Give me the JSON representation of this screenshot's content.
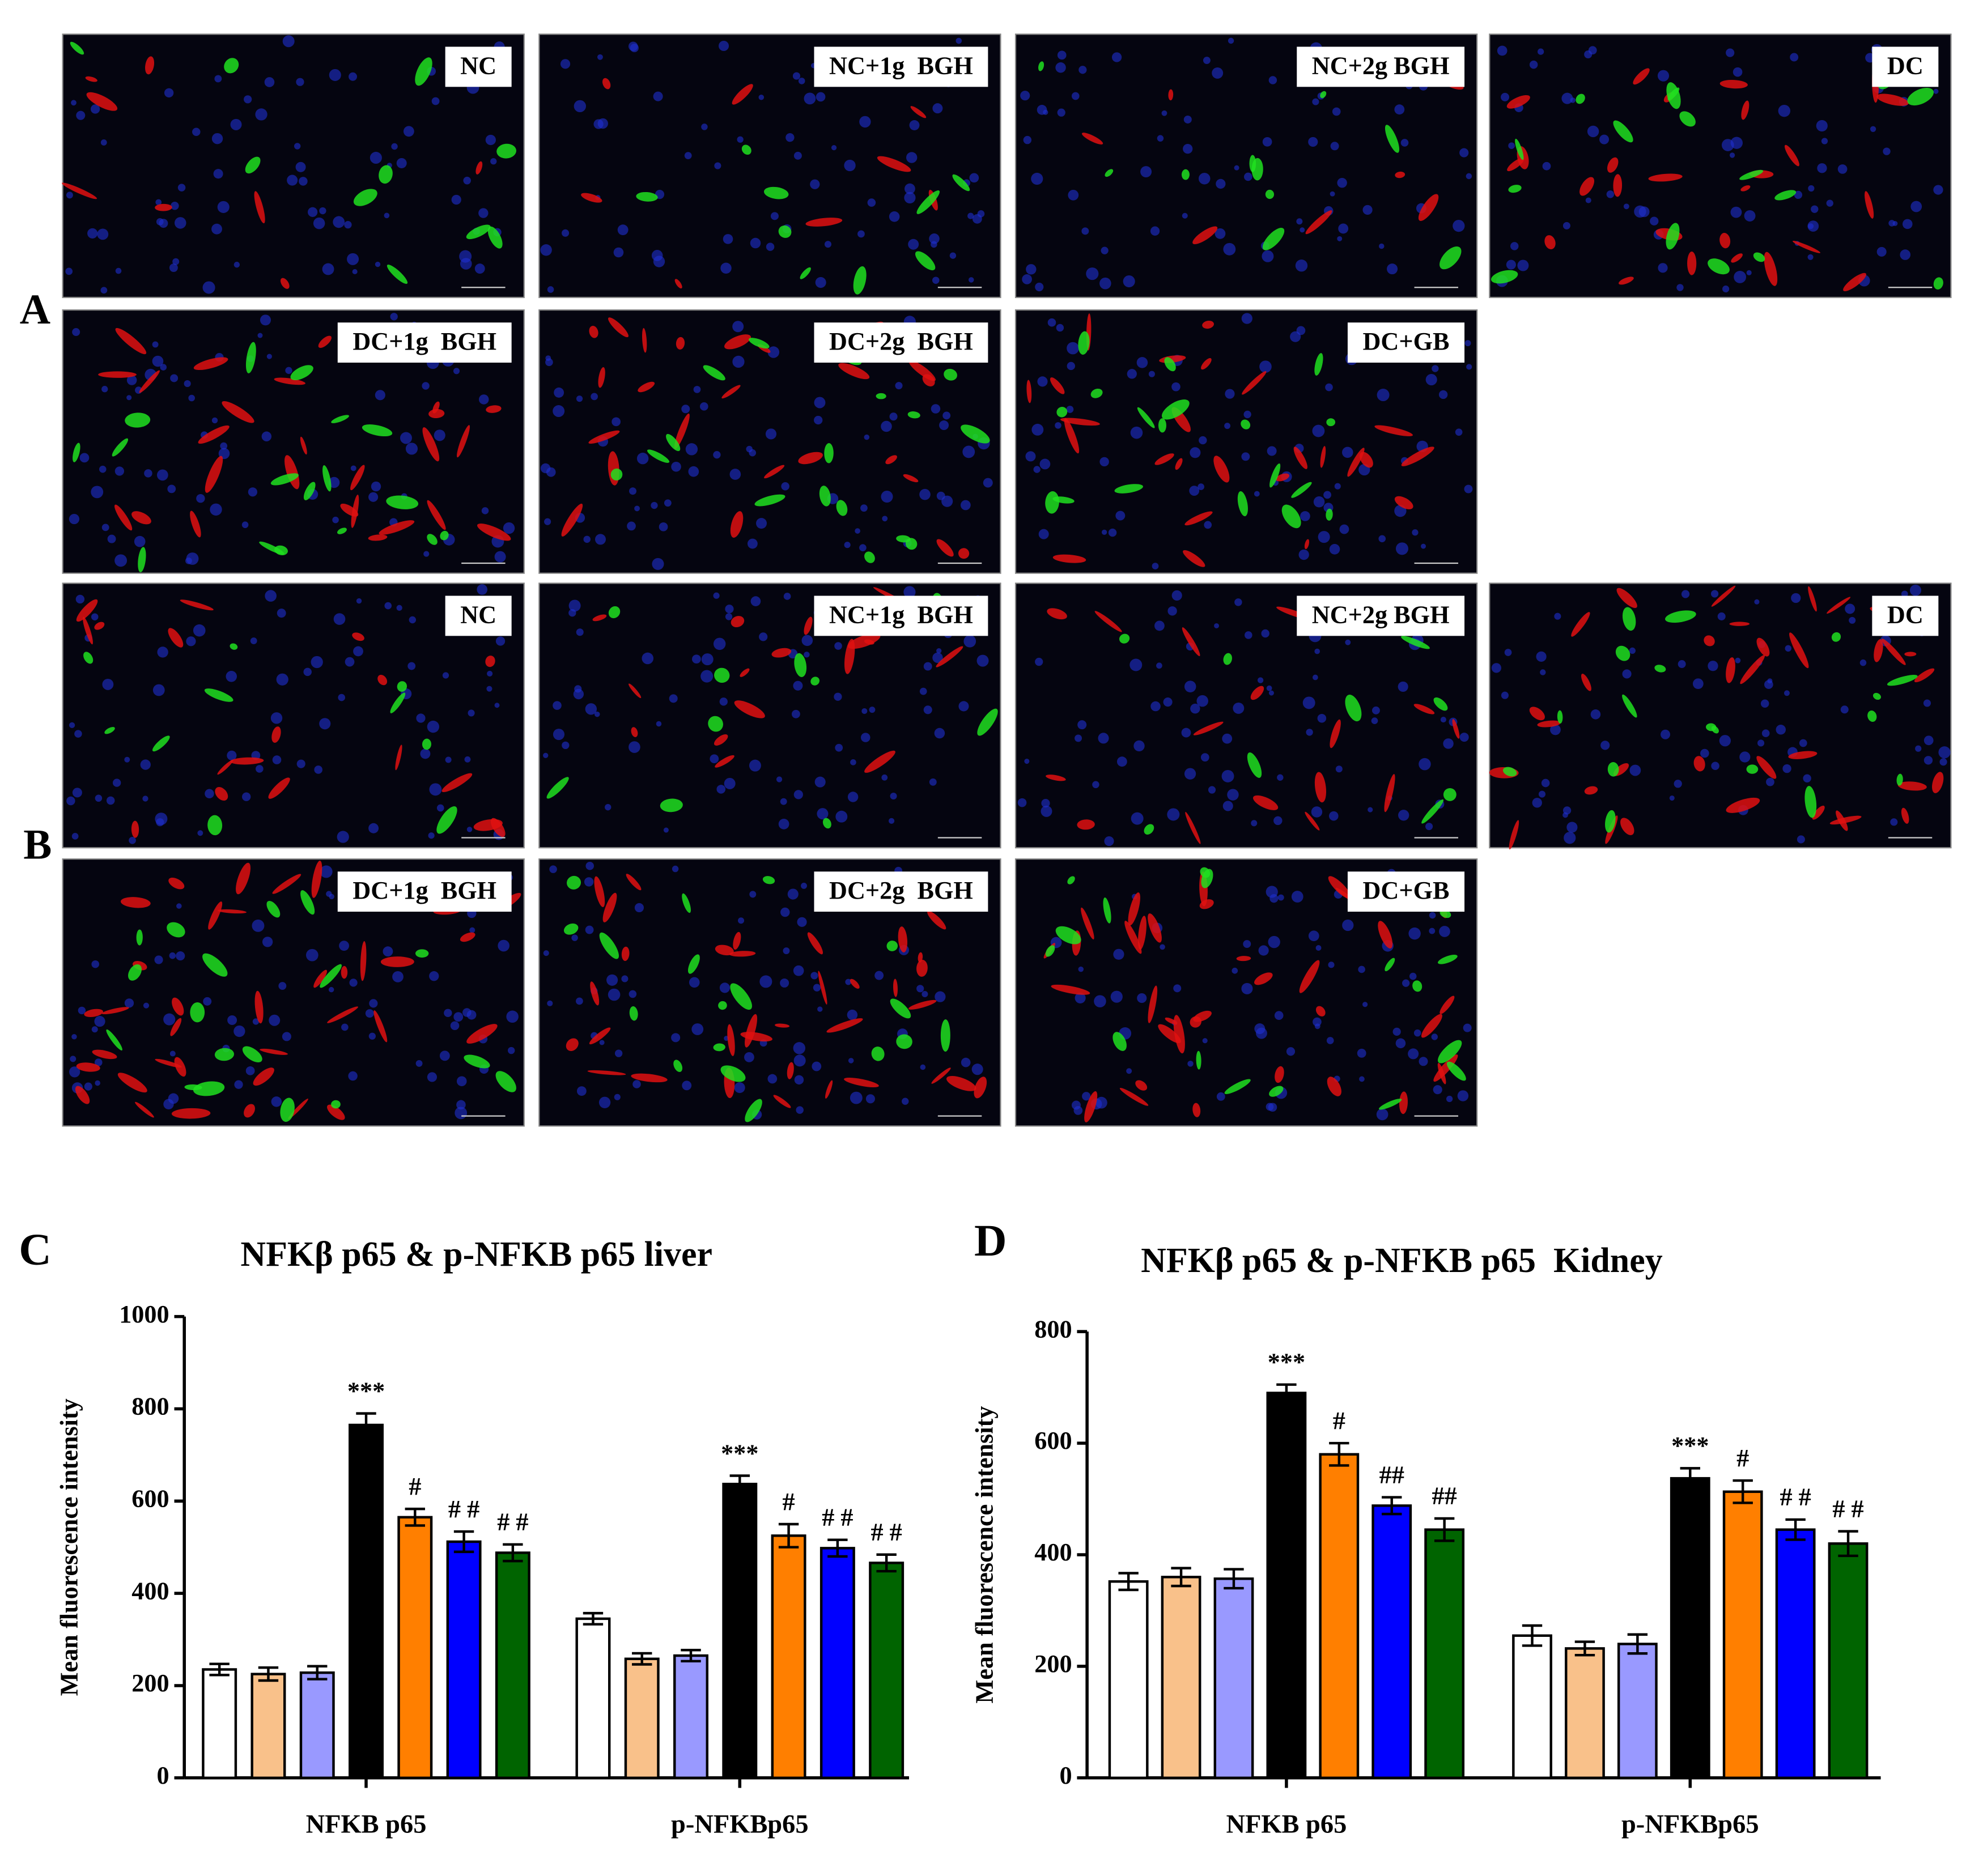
{
  "micrographs": [
    {
      "letter": "A",
      "labels": [
        "NC",
        "NC+1g  BGH",
        "NC+2g BGH",
        "DC",
        "DC+1g  BGH",
        "DC+2g  BGH",
        "DC+GB"
      ]
    },
    {
      "letter": "B",
      "labels": [
        "NC",
        "NC+1g  BGH",
        "NC+2g BGH",
        "DC",
        "DC+1g  BGH",
        "DC+2g  BGH",
        "DC+GB"
      ]
    }
  ],
  "chart_data": [
    {
      "type": "bar",
      "panel_label": "C",
      "title": "NFKβ p65 & p-NFKB p65 liver",
      "y_label": "Mean fluorescence intensity",
      "categories": [
        "NFKB p65",
        "p-NFKBp65"
      ],
      "ylim": [
        0,
        1000
      ],
      "yticks": [
        0,
        200,
        400,
        600,
        800,
        1000
      ],
      "series": [
        {
          "color": "#ffffff",
          "values": [
            235,
            345
          ],
          "errors": [
            12,
            12
          ],
          "markers": [
            null,
            null
          ]
        },
        {
          "color": "#f9c18a",
          "values": [
            225,
            258
          ],
          "errors": [
            14,
            12
          ],
          "markers": [
            null,
            null
          ]
        },
        {
          "color": "#9999ff",
          "values": [
            228,
            265
          ],
          "errors": [
            14,
            12
          ],
          "markers": [
            null,
            null
          ]
        },
        {
          "color": "#000000",
          "values": [
            765,
            637
          ],
          "errors": [
            25,
            18
          ],
          "markers": [
            "***",
            "***"
          ]
        },
        {
          "color": "#ff7f00",
          "values": [
            565,
            525
          ],
          "errors": [
            18,
            25
          ],
          "markers": [
            "#",
            "#"
          ]
        },
        {
          "color": "#0000ff",
          "values": [
            512,
            498
          ],
          "errors": [
            22,
            18
          ],
          "markers": [
            "# #",
            "# #"
          ]
        },
        {
          "color": "#006400",
          "values": [
            488,
            466
          ],
          "errors": [
            18,
            18
          ],
          "markers": [
            "# #",
            "# #"
          ]
        }
      ]
    },
    {
      "type": "bar",
      "panel_label": "D",
      "title": "NFKβ p65 & p-NFKB p65  Kidney",
      "y_label": "Mean fluorescence intensity",
      "categories": [
        "NFKB p65",
        "p-NFKBp65"
      ],
      "ylim": [
        0,
        800
      ],
      "yticks": [
        0,
        200,
        400,
        600,
        800
      ],
      "series": [
        {
          "color": "#ffffff",
          "values": [
            352,
            255
          ],
          "errors": [
            15,
            18
          ],
          "markers": [
            null,
            null
          ]
        },
        {
          "color": "#f9c18a",
          "values": [
            360,
            232
          ],
          "errors": [
            16,
            12
          ],
          "markers": [
            null,
            null
          ]
        },
        {
          "color": "#9999ff",
          "values": [
            357,
            240
          ],
          "errors": [
            17,
            17
          ],
          "markers": [
            null,
            null
          ]
        },
        {
          "color": "#000000",
          "values": [
            690,
            537
          ],
          "errors": [
            15,
            18
          ],
          "markers": [
            "***",
            "***"
          ]
        },
        {
          "color": "#ff7f00",
          "values": [
            580,
            513
          ],
          "errors": [
            20,
            20
          ],
          "markers": [
            "#",
            "#"
          ]
        },
        {
          "color": "#0000ff",
          "values": [
            488,
            445
          ],
          "errors": [
            15,
            18
          ],
          "markers": [
            "##",
            "# #"
          ]
        },
        {
          "color": "#006400",
          "values": [
            445,
            420
          ],
          "errors": [
            20,
            22
          ],
          "markers": [
            "##",
            "# #"
          ]
        }
      ]
    }
  ]
}
